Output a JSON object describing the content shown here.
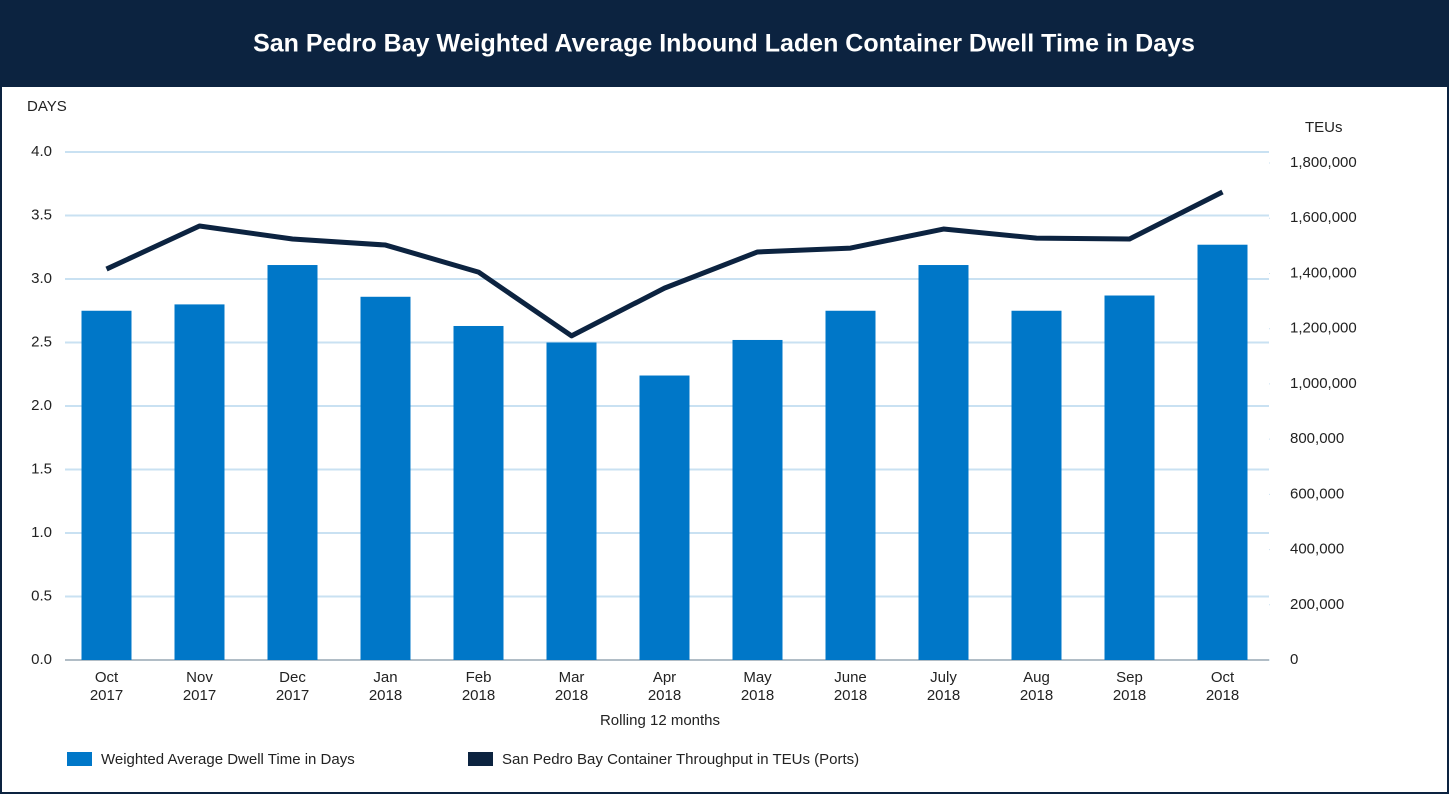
{
  "chart_data": {
    "type": "bar",
    "title": "San Pedro Bay Weighted Average Inbound Laden Container Dwell Time in Days",
    "y_label": "DAYS",
    "y2_label": "TEUs",
    "x_label": "Rolling 12 months",
    "categories": [
      "Oct 2017",
      "Nov 2017",
      "Dec 2017",
      "Jan 2018",
      "Feb 2018",
      "Mar 2018",
      "Apr 2018",
      "May 2018",
      "June 2018",
      "July 2018",
      "Aug 2018",
      "Sep 2018",
      "Oct 2018"
    ],
    "series": [
      {
        "name": "Weighted Average Dwell Time in Days",
        "type": "bar",
        "color": "#0077c8",
        "values": [
          2.75,
          2.8,
          3.11,
          2.86,
          2.63,
          2.5,
          2.24,
          2.52,
          2.75,
          3.11,
          2.75,
          2.87,
          3.27
        ]
      },
      {
        "name": "San Pedro Bay Container Throughput in TEUs (Ports)",
        "type": "line",
        "axis": "y2",
        "color": "#0c2340",
        "values": [
          1416000,
          1572000,
          1525000,
          1503000,
          1405000,
          1174000,
          1347000,
          1478000,
          1492000,
          1561000,
          1528000,
          1525000,
          1695000
        ]
      }
    ],
    "ylim": [
      0,
      4
    ],
    "yticks": [
      {
        "value": 0,
        "label": "0.0"
      },
      0.5,
      {
        "value": 1,
        "label": "1.0"
      },
      1.5,
      {
        "value": 2,
        "label": "2.0"
      },
      2.5,
      {
        "value": 3,
        "label": "3.0"
      },
      3.5,
      {
        "value": 4,
        "label": "4.0"
      }
    ],
    "y2lim": [
      0,
      1840000
    ],
    "y2ticks": [
      0,
      {
        "value": 200000,
        "label": "200,000"
      },
      {
        "value": 400000,
        "label": "400,000"
      },
      {
        "value": 600000,
        "label": "600,000"
      },
      {
        "value": 800000,
        "label": "800,000"
      },
      {
        "value": 1000000,
        "label": "1,000,000"
      },
      {
        "value": 1200000,
        "label": "1,200,000"
      },
      {
        "value": 1400000,
        "label": "1,400,000"
      },
      {
        "value": 1600000,
        "label": "1,600,000"
      },
      {
        "value": 1800000,
        "label": "1,800,000"
      }
    ],
    "grid": true,
    "legend": "bottom-left"
  }
}
